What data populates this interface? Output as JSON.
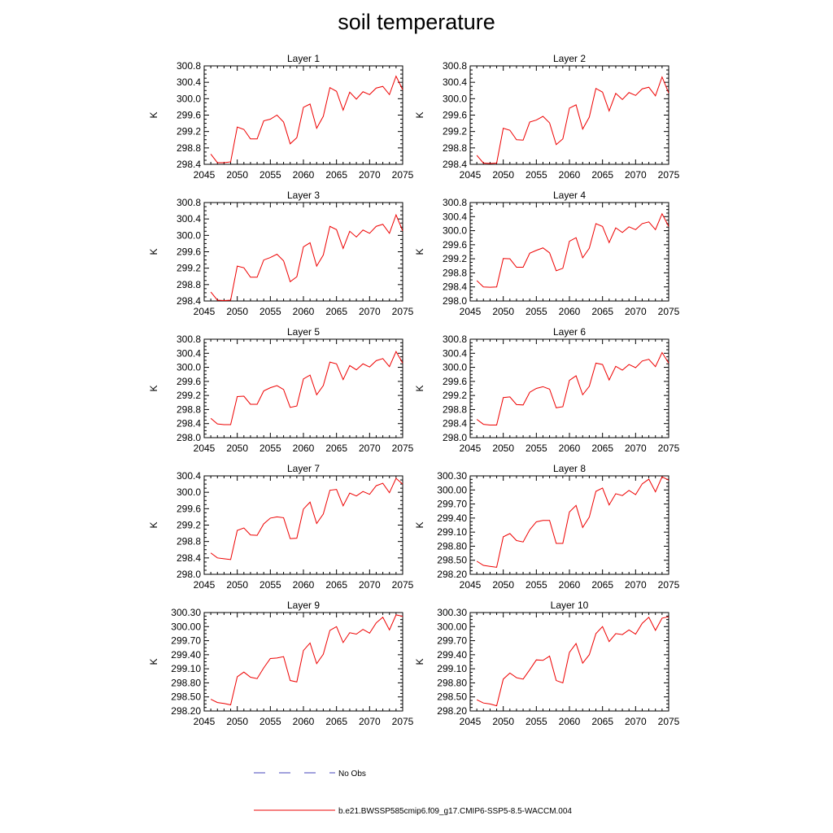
{
  "title": "soil temperature",
  "chart_data": [
    {
      "type": "line",
      "title": "Layer 1",
      "ylabel": "K",
      "xlim": [
        2045,
        2075
      ],
      "ylim": [
        298.4,
        300.8
      ],
      "xticks": [
        "2045",
        "2050",
        "2055",
        "2060",
        "2065",
        "2070",
        "2075"
      ],
      "yticks": [
        "298.4",
        "298.8",
        "299.2",
        "299.6",
        "300.0",
        "300.4",
        "300.8"
      ],
      "x": [
        2046,
        2047,
        2048,
        2049,
        2050,
        2051,
        2052,
        2053,
        2054,
        2055,
        2056,
        2057,
        2058,
        2059,
        2060,
        2061,
        2062,
        2063,
        2064,
        2065,
        2066,
        2067,
        2068,
        2069,
        2070,
        2071,
        2072,
        2073,
        2074,
        2075
      ],
      "series": [
        {
          "name": "b.e21.BWSSP585cmip6.f09_g17.CMIP6-SSP5-8.5-WACCM.004",
          "color": "#ee0000",
          "values": [
            298.65,
            298.44,
            298.44,
            298.46,
            299.31,
            299.25,
            299.02,
            299.02,
            299.46,
            299.5,
            299.6,
            299.43,
            298.9,
            299.05,
            299.79,
            299.87,
            299.28,
            299.57,
            300.27,
            300.18,
            299.72,
            300.16,
            299.99,
            300.17,
            300.1,
            300.26,
            300.3,
            300.1,
            300.55,
            300.22
          ]
        }
      ]
    },
    {
      "type": "line",
      "title": "Layer 2",
      "ylabel": "K",
      "xlim": [
        2045,
        2075
      ],
      "ylim": [
        298.4,
        300.8
      ],
      "xticks": [
        "2045",
        "2050",
        "2055",
        "2060",
        "2065",
        "2070",
        "2075"
      ],
      "yticks": [
        "298.4",
        "298.8",
        "299.2",
        "299.6",
        "300.0",
        "300.4",
        "300.8"
      ],
      "x": [
        2046,
        2047,
        2048,
        2049,
        2050,
        2051,
        2052,
        2053,
        2054,
        2055,
        2056,
        2057,
        2058,
        2059,
        2060,
        2061,
        2062,
        2063,
        2064,
        2065,
        2066,
        2067,
        2068,
        2069,
        2070,
        2071,
        2072,
        2073,
        2074,
        2075
      ],
      "series": [
        {
          "name": "b.e21.BWSSP585cmip6.f09_g17.CMIP6-SSP5-8.5-WACCM.004",
          "color": "#ee0000",
          "values": [
            298.62,
            298.43,
            298.42,
            298.43,
            299.28,
            299.23,
            299.0,
            298.99,
            299.43,
            299.48,
            299.57,
            299.41,
            298.88,
            299.02,
            299.77,
            299.85,
            299.26,
            299.55,
            300.25,
            300.16,
            299.7,
            300.13,
            299.98,
            300.15,
            300.08,
            300.24,
            300.28,
            300.07,
            300.53,
            300.14
          ]
        }
      ]
    },
    {
      "type": "line",
      "title": "Layer 3",
      "ylabel": "K",
      "xlim": [
        2045,
        2075
      ],
      "ylim": [
        298.4,
        300.8
      ],
      "xticks": [
        "2045",
        "2050",
        "2055",
        "2060",
        "2065",
        "2070",
        "2075"
      ],
      "yticks": [
        "298.4",
        "298.8",
        "299.2",
        "299.6",
        "300.0",
        "300.4",
        "300.8"
      ],
      "x": [
        2046,
        2047,
        2048,
        2049,
        2050,
        2051,
        2052,
        2053,
        2054,
        2055,
        2056,
        2057,
        2058,
        2059,
        2060,
        2061,
        2062,
        2063,
        2064,
        2065,
        2066,
        2067,
        2068,
        2069,
        2070,
        2071,
        2072,
        2073,
        2074,
        2075
      ],
      "series": [
        {
          "name": "b.e21.BWSSP585cmip6.f09_g17.CMIP6-SSP5-8.5-WACCM.004",
          "color": "#ee0000",
          "values": [
            298.62,
            298.42,
            298.41,
            298.42,
            299.25,
            299.21,
            298.98,
            298.98,
            299.4,
            299.46,
            299.54,
            299.38,
            298.87,
            298.99,
            299.72,
            299.82,
            299.25,
            299.52,
            300.22,
            300.14,
            299.68,
            300.1,
            299.96,
            300.13,
            300.05,
            300.22,
            300.27,
            300.05,
            300.5,
            300.11
          ]
        }
      ]
    },
    {
      "type": "line",
      "title": "Layer 4",
      "ylabel": "K",
      "xlim": [
        2045,
        2075
      ],
      "ylim": [
        298.0,
        300.8
      ],
      "xticks": [
        "2045",
        "2050",
        "2055",
        "2060",
        "2065",
        "2070",
        "2075"
      ],
      "yticks": [
        "298.0",
        "298.4",
        "298.8",
        "299.2",
        "299.6",
        "300.0",
        "300.4",
        "300.8"
      ],
      "x": [
        2046,
        2047,
        2048,
        2049,
        2050,
        2051,
        2052,
        2053,
        2054,
        2055,
        2056,
        2057,
        2058,
        2059,
        2060,
        2061,
        2062,
        2063,
        2064,
        2065,
        2066,
        2067,
        2068,
        2069,
        2070,
        2071,
        2072,
        2073,
        2074,
        2075
      ],
      "series": [
        {
          "name": "b.e21.BWSSP585cmip6.f09_g17.CMIP6-SSP5-8.5-WACCM.004",
          "color": "#ee0000",
          "values": [
            298.58,
            298.4,
            298.39,
            298.4,
            299.21,
            299.2,
            298.96,
            298.96,
            299.36,
            299.44,
            299.51,
            299.37,
            298.86,
            298.93,
            299.7,
            299.8,
            299.23,
            299.5,
            300.2,
            300.12,
            299.66,
            300.08,
            299.95,
            300.11,
            300.03,
            300.2,
            300.25,
            300.03,
            300.48,
            300.12
          ]
        }
      ]
    },
    {
      "type": "line",
      "title": "Layer 5",
      "ylabel": "K",
      "xlim": [
        2045,
        2075
      ],
      "ylim": [
        298.0,
        300.8
      ],
      "xticks": [
        "2045",
        "2050",
        "2055",
        "2060",
        "2065",
        "2070",
        "2075"
      ],
      "yticks": [
        "298.0",
        "298.4",
        "298.8",
        "299.2",
        "299.6",
        "300.0",
        "300.4",
        "300.8"
      ],
      "x": [
        2046,
        2047,
        2048,
        2049,
        2050,
        2051,
        2052,
        2053,
        2054,
        2055,
        2056,
        2057,
        2058,
        2059,
        2060,
        2061,
        2062,
        2063,
        2064,
        2065,
        2066,
        2067,
        2068,
        2069,
        2070,
        2071,
        2072,
        2073,
        2074,
        2075
      ],
      "series": [
        {
          "name": "b.e21.BWSSP585cmip6.f09_g17.CMIP6-SSP5-8.5-WACCM.004",
          "color": "#ee0000",
          "values": [
            298.55,
            298.39,
            298.37,
            298.37,
            299.17,
            299.18,
            298.95,
            298.95,
            299.33,
            299.42,
            299.48,
            299.37,
            298.86,
            298.9,
            299.67,
            299.78,
            299.22,
            299.48,
            300.15,
            300.1,
            299.65,
            300.05,
            299.93,
            300.1,
            300.01,
            300.19,
            300.25,
            300.02,
            300.45,
            300.12
          ]
        }
      ]
    },
    {
      "type": "line",
      "title": "Layer 6",
      "ylabel": "K",
      "xlim": [
        2045,
        2075
      ],
      "ylim": [
        298.0,
        300.8
      ],
      "xticks": [
        "2045",
        "2050",
        "2055",
        "2060",
        "2065",
        "2070",
        "2075"
      ],
      "yticks": [
        "298.0",
        "298.4",
        "298.8",
        "299.2",
        "299.6",
        "300.0",
        "300.4",
        "300.8"
      ],
      "x": [
        2046,
        2047,
        2048,
        2049,
        2050,
        2051,
        2052,
        2053,
        2054,
        2055,
        2056,
        2057,
        2058,
        2059,
        2060,
        2061,
        2062,
        2063,
        2064,
        2065,
        2066,
        2067,
        2068,
        2069,
        2070,
        2071,
        2072,
        2073,
        2074,
        2075
      ],
      "series": [
        {
          "name": "b.e21.BWSSP585cmip6.f09_g17.CMIP6-SSP5-8.5-WACCM.004",
          "color": "#ee0000",
          "values": [
            298.52,
            298.38,
            298.36,
            298.36,
            299.14,
            299.16,
            298.94,
            298.93,
            299.29,
            299.4,
            299.45,
            299.38,
            298.85,
            298.88,
            299.63,
            299.76,
            299.22,
            299.46,
            300.12,
            300.08,
            299.64,
            300.03,
            299.92,
            300.08,
            299.99,
            300.18,
            300.23,
            300.02,
            300.42,
            300.12
          ]
        }
      ]
    },
    {
      "type": "line",
      "title": "Layer 7",
      "ylabel": "K",
      "xlim": [
        2045,
        2075
      ],
      "ylim": [
        298.0,
        300.4
      ],
      "xticks": [
        "2045",
        "2050",
        "2055",
        "2060",
        "2065",
        "2070",
        "2075"
      ],
      "yticks": [
        "298.0",
        "298.4",
        "298.8",
        "299.2",
        "299.6",
        "300.0",
        "300.4"
      ],
      "x": [
        2046,
        2047,
        2048,
        2049,
        2050,
        2051,
        2052,
        2053,
        2054,
        2055,
        2056,
        2057,
        2058,
        2059,
        2060,
        2061,
        2062,
        2063,
        2064,
        2065,
        2066,
        2067,
        2068,
        2069,
        2070,
        2071,
        2072,
        2073,
        2074,
        2075
      ],
      "series": [
        {
          "name": "b.e21.BWSSP585cmip6.f09_g17.CMIP6-SSP5-8.5-WACCM.004",
          "color": "#ee0000",
          "values": [
            298.52,
            298.4,
            298.38,
            298.36,
            299.07,
            299.13,
            298.96,
            298.95,
            299.23,
            299.37,
            299.4,
            299.38,
            298.87,
            298.88,
            299.59,
            299.76,
            299.24,
            299.47,
            300.05,
            300.07,
            299.67,
            299.98,
            299.91,
            300.02,
            299.95,
            300.16,
            300.22,
            299.99,
            300.34,
            300.2
          ]
        }
      ]
    },
    {
      "type": "line",
      "title": "Layer 8",
      "ylabel": "K",
      "xlim": [
        2045,
        2075
      ],
      "ylim": [
        298.2,
        300.3
      ],
      "xticks": [
        "2045",
        "2050",
        "2055",
        "2060",
        "2065",
        "2070",
        "2075"
      ],
      "yticks": [
        "298.20",
        "298.50",
        "298.80",
        "299.10",
        "299.40",
        "299.70",
        "300.00",
        "300.30"
      ],
      "x": [
        2046,
        2047,
        2048,
        2049,
        2050,
        2051,
        2052,
        2053,
        2054,
        2055,
        2056,
        2057,
        2058,
        2059,
        2060,
        2061,
        2062,
        2063,
        2064,
        2065,
        2066,
        2067,
        2068,
        2069,
        2070,
        2071,
        2072,
        2073,
        2074,
        2075
      ],
      "series": [
        {
          "name": "b.e21.BWSSP585cmip6.f09_g17.CMIP6-SSP5-8.5-WACCM.004",
          "color": "#ee0000",
          "values": [
            298.48,
            298.39,
            298.37,
            298.35,
            299.0,
            299.07,
            298.92,
            298.89,
            299.15,
            299.32,
            299.35,
            299.35,
            298.86,
            298.86,
            299.53,
            299.67,
            299.2,
            299.42,
            299.97,
            300.04,
            299.68,
            299.92,
            299.88,
            299.99,
            299.9,
            300.13,
            300.23,
            299.96,
            300.28,
            300.21
          ]
        }
      ]
    },
    {
      "type": "line",
      "title": "Layer 9",
      "ylabel": "K",
      "xlim": [
        2045,
        2075
      ],
      "ylim": [
        298.2,
        300.3
      ],
      "xticks": [
        "2045",
        "2050",
        "2055",
        "2060",
        "2065",
        "2070",
        "2075"
      ],
      "yticks": [
        "298.20",
        "298.50",
        "298.80",
        "299.10",
        "299.40",
        "299.70",
        "300.00",
        "300.30"
      ],
      "x": [
        2046,
        2047,
        2048,
        2049,
        2050,
        2051,
        2052,
        2053,
        2054,
        2055,
        2056,
        2057,
        2058,
        2059,
        2060,
        2061,
        2062,
        2063,
        2064,
        2065,
        2066,
        2067,
        2068,
        2069,
        2070,
        2071,
        2072,
        2073,
        2074,
        2075
      ],
      "series": [
        {
          "name": "b.e21.BWSSP585cmip6.f09_g17.CMIP6-SSP5-8.5-WACCM.004",
          "color": "#ee0000",
          "values": [
            298.45,
            298.38,
            298.36,
            298.33,
            298.93,
            299.03,
            298.92,
            298.89,
            299.12,
            299.32,
            299.33,
            299.36,
            298.85,
            298.82,
            299.49,
            299.65,
            299.21,
            299.41,
            299.92,
            300.0,
            299.66,
            299.87,
            299.84,
            299.94,
            299.86,
            300.08,
            300.2,
            299.93,
            300.25,
            300.22
          ]
        }
      ]
    },
    {
      "type": "line",
      "title": "Layer 10",
      "ylabel": "K",
      "xlim": [
        2045,
        2075
      ],
      "ylim": [
        298.2,
        300.3
      ],
      "xticks": [
        "2045",
        "2050",
        "2055",
        "2060",
        "2065",
        "2070",
        "2075"
      ],
      "yticks": [
        "298.20",
        "298.50",
        "298.80",
        "299.10",
        "299.40",
        "299.70",
        "300.00",
        "300.30"
      ],
      "x": [
        2046,
        2047,
        2048,
        2049,
        2050,
        2051,
        2052,
        2053,
        2054,
        2055,
        2056,
        2057,
        2058,
        2059,
        2060,
        2061,
        2062,
        2063,
        2064,
        2065,
        2066,
        2067,
        2068,
        2069,
        2070,
        2071,
        2072,
        2073,
        2074,
        2075
      ],
      "series": [
        {
          "name": "b.e21.BWSSP585cmip6.f09_g17.CMIP6-SSP5-8.5-WACCM.004",
          "color": "#ee0000",
          "values": [
            298.44,
            298.37,
            298.35,
            298.31,
            298.88,
            299.01,
            298.91,
            298.88,
            299.08,
            299.29,
            299.28,
            299.37,
            298.85,
            298.8,
            299.45,
            299.64,
            299.22,
            299.4,
            299.85,
            300.0,
            299.68,
            299.85,
            299.83,
            299.93,
            299.84,
            300.07,
            300.2,
            299.92,
            300.18,
            300.21
          ]
        }
      ]
    }
  ],
  "legend": [
    {
      "label": "No Obs",
      "color": "#4444bb",
      "dashed": true
    },
    {
      "label": "b.e21.BWSSP585cmip6.f09_g17.CMIP6-SSP5-8.5-WACCM.004",
      "color": "#ee0000",
      "dashed": false
    }
  ]
}
